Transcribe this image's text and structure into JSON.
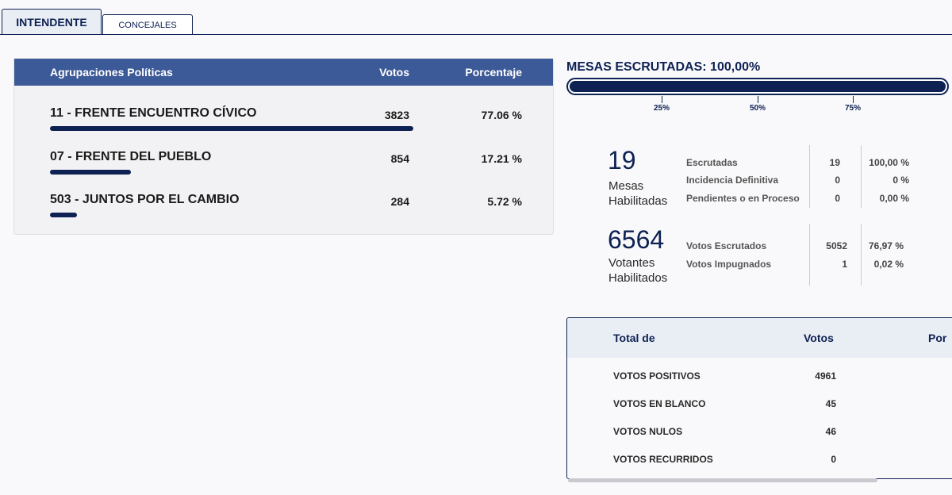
{
  "tabs": [
    {
      "label": "INTENDENTE",
      "active": true
    },
    {
      "label": "CONCEJALES",
      "active": false
    }
  ],
  "parties_table": {
    "headers": {
      "name": "Agrupaciones Políticas",
      "votes": "Votos",
      "percent": "Porcentaje"
    },
    "rows": [
      {
        "name": "11 - FRENTE ENCUENTRO CÍVICO",
        "votes": "3823",
        "percent": "77.06 %",
        "bar_fraction": 1.0
      },
      {
        "name": "07 - FRENTE DEL PUEBLO",
        "votes": "854",
        "percent": "17.21 %",
        "bar_fraction": 0.223
      },
      {
        "name": "503 - JUNTOS POR EL CAMBIO",
        "votes": "284",
        "percent": "5.72 %",
        "bar_fraction": 0.074
      }
    ],
    "bar_color": "#0e2153",
    "header_color": "#3d5a98"
  },
  "mesas_escrutadas": {
    "title": "MESAS ESCRUTADAS: 100,00%",
    "progress": 1.0,
    "ticks": [
      "25%",
      "50%",
      "75%"
    ]
  },
  "mesas": {
    "number": "19",
    "label_line1": "Mesas",
    "label_line2": "Habilitadas",
    "rows": [
      {
        "label": "Escrutadas",
        "value": "19",
        "percent": "100,00 %"
      },
      {
        "label": "Incidencia Definitiva",
        "value": "0",
        "percent": "0 %"
      },
      {
        "label": "Pendientes o en Proceso",
        "value": "0",
        "percent": "0,00 %"
      }
    ]
  },
  "votantes": {
    "number": "6564",
    "label_line1": "Votantes",
    "label_line2": "Habilitados",
    "rows": [
      {
        "label": "Votos Escrutados",
        "value": "5052",
        "percent": "76,97 %"
      },
      {
        "label": "Votos Impugnados",
        "value": "1",
        "percent": "0,02 %"
      }
    ]
  },
  "totals_table": {
    "headers": {
      "name": "Total de",
      "votes": "Votos",
      "percent": "Por"
    },
    "rows": [
      {
        "label": "VOTOS POSITIVOS",
        "value": "4961"
      },
      {
        "label": "VOTOS EN BLANCO",
        "value": "45"
      },
      {
        "label": "VOTOS NULOS",
        "value": "46"
      },
      {
        "label": "VOTOS RECURRIDOS",
        "value": "0"
      }
    ]
  },
  "colors": {
    "navy": "#0e2153",
    "background": "#f9f9fb"
  }
}
